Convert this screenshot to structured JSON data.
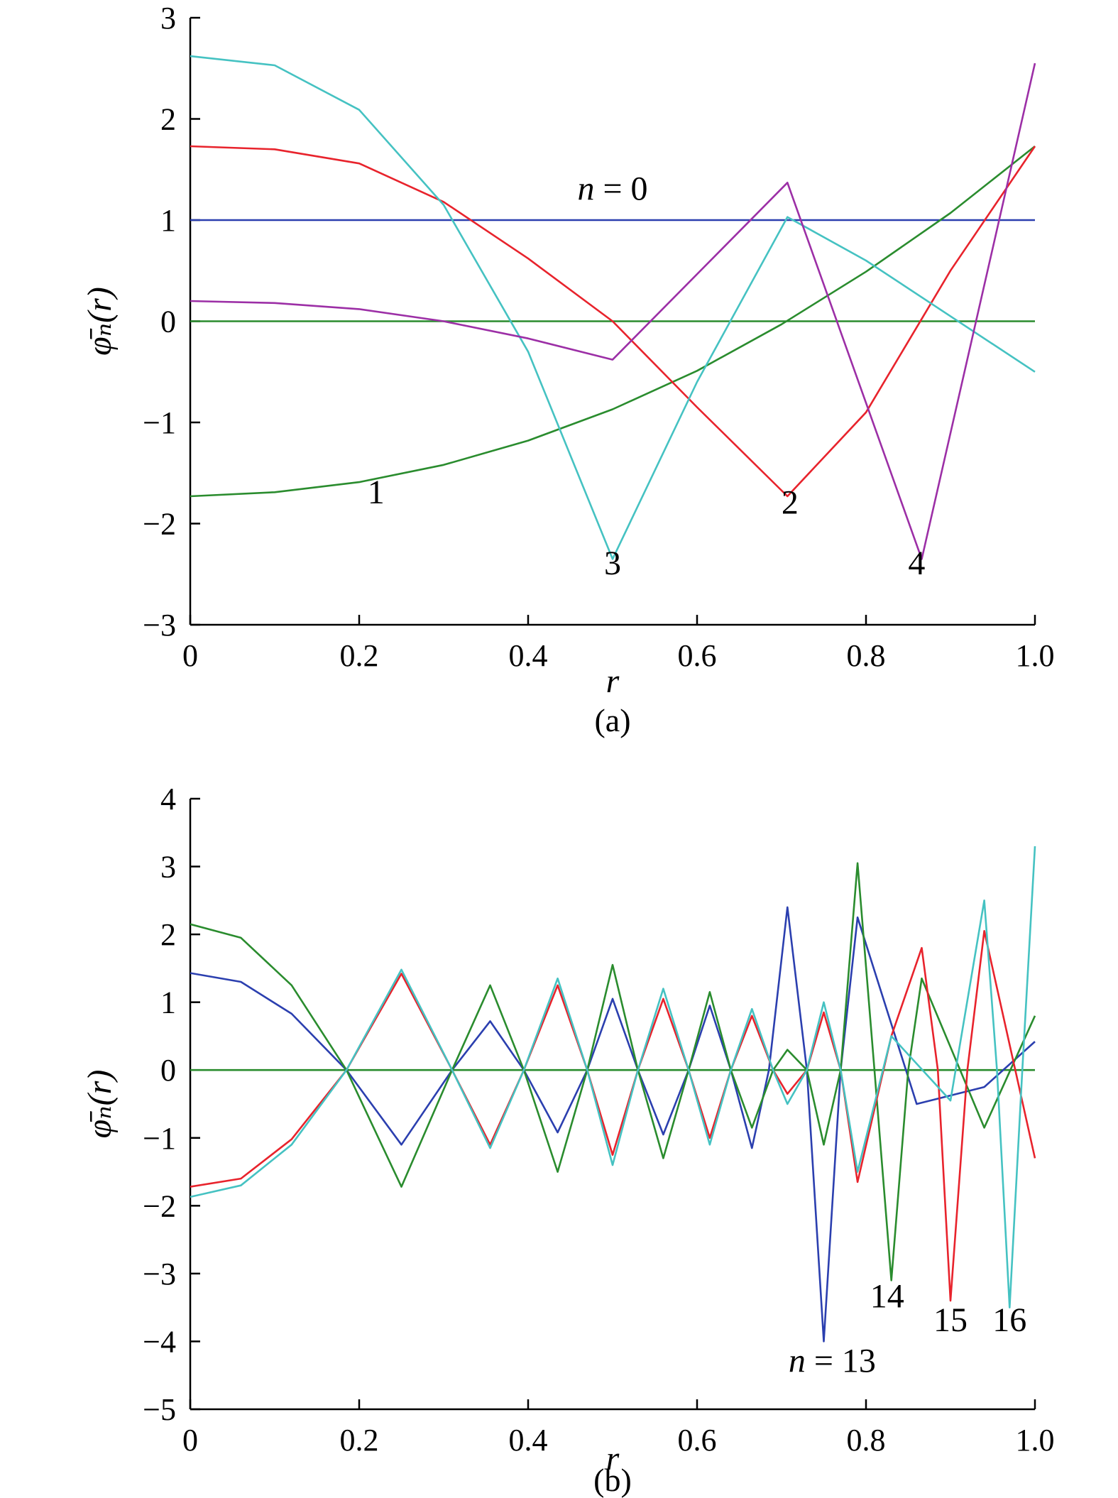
{
  "colors": {
    "blue": "#2b3faf",
    "red": "#e8232c",
    "cyan": "#45c2c2",
    "purple": "#9c2fa6",
    "green": "#2a8c2e",
    "axis": "#000000"
  },
  "chart_data": [
    {
      "panel": "(a)",
      "type": "line",
      "caption": "(a)",
      "xlabel": "r",
      "ylabel": "φ̄ₙ(r)",
      "xlim": [
        0,
        1.0
      ],
      "ylim": [
        -3,
        3
      ],
      "x_ticks": [
        "0",
        "0.2",
        "0.4",
        "0.6",
        "0.8",
        "1.0"
      ],
      "x_tick_values": [
        0,
        0.2,
        0.4,
        0.6,
        0.8,
        1.0
      ],
      "y_ticks": [
        "3",
        "2",
        "1",
        "0",
        "−1",
        "−2",
        "−3"
      ],
      "y_tick_values": [
        3,
        2,
        1,
        0,
        -1,
        -2,
        -3
      ],
      "grid": false,
      "series": [
        {
          "name": "n = 0",
          "color": "blue",
          "x": [
            0,
            1.0
          ],
          "y": [
            1.0,
            1.0
          ]
        },
        {
          "color": "green",
          "x": [
            0,
            1.0
          ],
          "y": [
            0,
            0
          ]
        },
        {
          "name": "1",
          "color": "green",
          "x": [
            0,
            0.1,
            0.2,
            0.3,
            0.4,
            0.5,
            0.6,
            0.7,
            0.8,
            0.9,
            1.0
          ],
          "y": [
            -1.73,
            -1.69,
            -1.59,
            -1.42,
            -1.18,
            -0.87,
            -0.49,
            -0.03,
            0.49,
            1.07,
            1.73
          ]
        },
        {
          "name": "2",
          "color": "red",
          "x": [
            0,
            0.1,
            0.2,
            0.3,
            0.4,
            0.5,
            0.6,
            0.707,
            0.8,
            0.9,
            1.0
          ],
          "y": [
            1.73,
            1.7,
            1.56,
            1.18,
            0.62,
            0.0,
            -0.85,
            -1.73,
            -0.9,
            0.5,
            1.73
          ]
        },
        {
          "name": "3",
          "color": "cyan",
          "x": [
            0,
            0.1,
            0.2,
            0.3,
            0.4,
            0.5,
            0.6,
            0.707,
            0.8,
            0.9,
            1.0
          ],
          "y": [
            2.62,
            2.53,
            2.09,
            1.15,
            -0.3,
            -2.35,
            -0.6,
            1.03,
            0.6,
            0.05,
            -0.5
          ]
        },
        {
          "name": "4",
          "color": "purple",
          "x": [
            0,
            0.1,
            0.2,
            0.3,
            0.4,
            0.5,
            0.707,
            0.866,
            1.0
          ],
          "y": [
            0.2,
            0.18,
            0.12,
            0.0,
            -0.17,
            -0.38,
            1.37,
            -2.35,
            2.55
          ]
        }
      ],
      "annotations": [
        {
          "text": "n",
          "rest": " = 0",
          "x": 0.5,
          "y": 1.2
        },
        {
          "text": "1",
          "x": 0.22,
          "y": -1.8
        },
        {
          "text": "2",
          "x": 0.71,
          "y": -1.9
        },
        {
          "text": "3",
          "x": 0.5,
          "y": -2.5
        },
        {
          "text": "4",
          "x": 0.86,
          "y": -2.5
        }
      ]
    },
    {
      "panel": "(b)",
      "type": "line",
      "caption": "(b)",
      "xlabel": "r",
      "ylabel": "φ̄ₙ(r)",
      "xlim": [
        0,
        1.0
      ],
      "ylim": [
        -5,
        4
      ],
      "x_ticks": [
        "0",
        "0.2",
        "0.4",
        "0.6",
        "0.8",
        "1.0"
      ],
      "x_tick_values": [
        0,
        0.2,
        0.4,
        0.6,
        0.8,
        1.0
      ],
      "y_ticks": [
        "4",
        "3",
        "2",
        "1",
        "0",
        "−1",
        "−2",
        "−3",
        "−4",
        "−5"
      ],
      "y_tick_values": [
        4,
        3,
        2,
        1,
        0,
        -1,
        -2,
        -3,
        -4,
        -5
      ],
      "grid": false,
      "series": [
        {
          "color": "green",
          "x": [
            0,
            1.0
          ],
          "y": [
            0,
            0
          ]
        },
        {
          "name": "n = 13",
          "color": "blue",
          "x": [
            0,
            0.06,
            0.12,
            0.185,
            0.25,
            0.31,
            0.355,
            0.395,
            0.435,
            0.47,
            0.5,
            0.53,
            0.56,
            0.59,
            0.615,
            0.64,
            0.665,
            0.685,
            0.707,
            0.73,
            0.75,
            0.77,
            0.79,
            0.86,
            0.94,
            1.0
          ],
          "y": [
            1.43,
            1.3,
            0.83,
            0,
            -1.1,
            0,
            0.72,
            0,
            -0.92,
            0,
            1.05,
            0,
            -0.95,
            0,
            0.95,
            0,
            -1.15,
            0,
            2.4,
            0,
            -4.0,
            0,
            2.25,
            -0.5,
            -0.25,
            0.42
          ]
        },
        {
          "name": "14",
          "color": "green",
          "x": [
            0,
            0.06,
            0.12,
            0.185,
            0.25,
            0.31,
            0.355,
            0.395,
            0.435,
            0.47,
            0.5,
            0.53,
            0.56,
            0.59,
            0.615,
            0.64,
            0.665,
            0.69,
            0.707,
            0.73,
            0.75,
            0.77,
            0.79,
            0.81,
            0.83,
            0.85,
            0.866,
            0.94,
            1.0
          ],
          "y": [
            2.15,
            1.95,
            1.25,
            0,
            -1.72,
            0,
            1.25,
            0,
            -1.5,
            0,
            1.55,
            0,
            -1.3,
            0,
            1.15,
            0,
            -0.85,
            0,
            0.3,
            0,
            -1.1,
            0,
            3.05,
            0,
            -3.1,
            0,
            1.35,
            -0.85,
            0.8
          ]
        },
        {
          "name": "15",
          "color": "red",
          "x": [
            0,
            0.06,
            0.12,
            0.185,
            0.25,
            0.31,
            0.355,
            0.395,
            0.435,
            0.47,
            0.5,
            0.53,
            0.56,
            0.59,
            0.615,
            0.64,
            0.665,
            0.69,
            0.707,
            0.73,
            0.75,
            0.77,
            0.79,
            0.83,
            0.866,
            0.885,
            0.9,
            0.92,
            0.94,
            1.0
          ],
          "y": [
            -1.72,
            -1.6,
            -1.02,
            0,
            1.42,
            0,
            -1.1,
            0,
            1.25,
            0,
            -1.25,
            0,
            1.05,
            0,
            -1.0,
            0,
            0.8,
            0,
            -0.35,
            0,
            0.85,
            0,
            -1.65,
            0.5,
            1.8,
            0,
            -3.4,
            0,
            2.05,
            -1.3
          ]
        },
        {
          "name": "16",
          "color": "cyan",
          "x": [
            0,
            0.06,
            0.12,
            0.185,
            0.25,
            0.31,
            0.355,
            0.395,
            0.435,
            0.47,
            0.5,
            0.53,
            0.56,
            0.59,
            0.615,
            0.64,
            0.665,
            0.69,
            0.707,
            0.73,
            0.75,
            0.77,
            0.79,
            0.83,
            0.9,
            0.94,
            0.955,
            0.97,
            0.985,
            1.0
          ],
          "y": [
            -1.87,
            -1.7,
            -1.1,
            0,
            1.48,
            0,
            -1.15,
            0,
            1.35,
            0,
            -1.4,
            0,
            1.2,
            0,
            -1.1,
            0,
            0.9,
            0,
            -0.5,
            0,
            1.0,
            0,
            -1.5,
            0.5,
            -0.45,
            2.5,
            0,
            -3.5,
            0,
            3.3
          ]
        }
      ],
      "annotations": [
        {
          "text": "n",
          "rest": " = 13",
          "x": 0.76,
          "y": -4.45
        },
        {
          "text": "14",
          "x": 0.825,
          "y": -3.5
        },
        {
          "text": "15",
          "x": 0.9,
          "y": -3.85
        },
        {
          "text": "16",
          "x": 0.97,
          "y": -3.85
        }
      ]
    }
  ]
}
